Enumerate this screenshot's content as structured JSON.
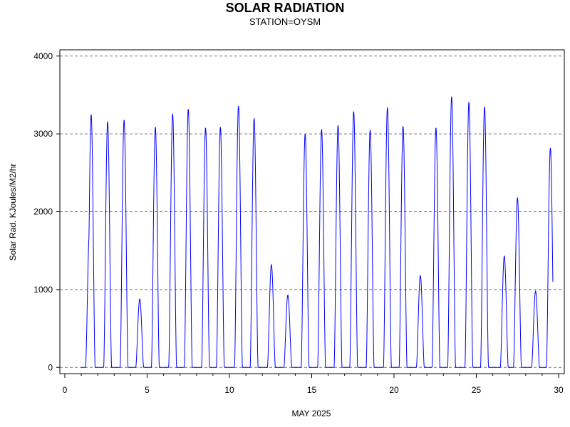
{
  "chart_data": {
    "type": "line",
    "title": "SOLAR RADIATION",
    "subtitle": "STATION=OYSM",
    "xlabel": "MAY 2025",
    "ylabel": "Solar Rad. KJoules/M2/hr",
    "xlim": [
      0,
      30
    ],
    "ylim": [
      -80,
      4080
    ],
    "x_ticks": [
      0,
      5,
      10,
      15,
      20,
      25,
      30
    ],
    "y_ticks": [
      0,
      1000,
      2000,
      3000,
      4000
    ],
    "grid": "horizontal-dashed",
    "line_color": "#0000ff",
    "series": [
      {
        "daily_peaks": [
          [
            1.5,
            1750
          ],
          [
            1.6,
            3250
          ],
          [
            2.6,
            3160
          ],
          [
            3.6,
            3180
          ],
          [
            4.55,
            880
          ],
          [
            5.5,
            3090
          ],
          [
            6.55,
            3260
          ],
          [
            7.5,
            3320
          ],
          [
            8.55,
            3080
          ],
          [
            9.45,
            3090
          ],
          [
            10.55,
            3360
          ],
          [
            11.5,
            3200
          ],
          [
            12.55,
            1320
          ],
          [
            13.55,
            930
          ],
          [
            14.6,
            3000
          ],
          [
            15.6,
            3060
          ],
          [
            16.6,
            3110
          ],
          [
            17.55,
            3290
          ],
          [
            18.55,
            3050
          ],
          [
            19.6,
            3340
          ],
          [
            20.55,
            3100
          ],
          [
            21.6,
            1180
          ],
          [
            22.55,
            3080
          ],
          [
            23.5,
            3480
          ],
          [
            24.55,
            3410
          ],
          [
            25.5,
            3350
          ],
          [
            26.7,
            1430
          ],
          [
            27.5,
            2180
          ],
          [
            28.6,
            980
          ],
          [
            29.5,
            2820
          ]
        ]
      }
    ]
  }
}
